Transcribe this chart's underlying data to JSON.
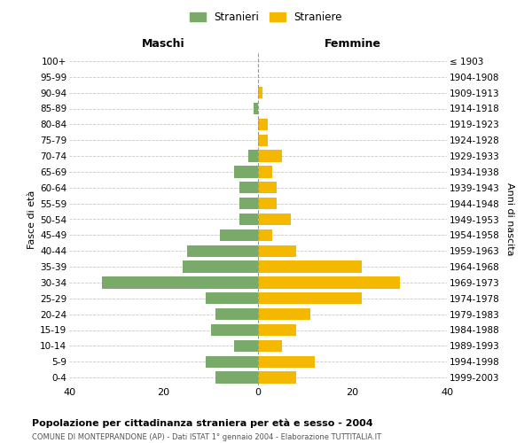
{
  "age_groups": [
    "100+",
    "95-99",
    "90-94",
    "85-89",
    "80-84",
    "75-79",
    "70-74",
    "65-69",
    "60-64",
    "55-59",
    "50-54",
    "45-49",
    "40-44",
    "35-39",
    "30-34",
    "25-29",
    "20-24",
    "15-19",
    "10-14",
    "5-9",
    "0-4"
  ],
  "birth_years": [
    "≤ 1903",
    "1904-1908",
    "1909-1913",
    "1914-1918",
    "1919-1923",
    "1924-1928",
    "1929-1933",
    "1934-1938",
    "1939-1943",
    "1944-1948",
    "1949-1953",
    "1954-1958",
    "1959-1963",
    "1964-1968",
    "1969-1973",
    "1974-1978",
    "1979-1983",
    "1984-1988",
    "1989-1993",
    "1994-1998",
    "1999-2003"
  ],
  "maschi": [
    0,
    0,
    0,
    1,
    0,
    0,
    2,
    5,
    4,
    4,
    4,
    8,
    15,
    16,
    33,
    11,
    9,
    10,
    5,
    11,
    9
  ],
  "femmine": [
    0,
    0,
    1,
    0,
    2,
    2,
    5,
    3,
    4,
    4,
    7,
    3,
    8,
    22,
    30,
    22,
    11,
    8,
    5,
    12,
    8
  ],
  "maschi_color": "#7aaa6a",
  "femmine_color": "#f5b800",
  "background_color": "#ffffff",
  "grid_color": "#c8c8c8",
  "title": "Popolazione per cittadinanza straniera per età e sesso - 2004",
  "subtitle": "COMUNE DI MONTEPRANDONE (AP) - Dati ISTAT 1° gennaio 2004 - Elaborazione TUTTITALIA.IT",
  "xlabel_left": "Maschi",
  "xlabel_right": "Femmine",
  "ylabel_left": "Fasce di età",
  "ylabel_right": "Anni di nascita",
  "legend_maschi": "Stranieri",
  "legend_femmine": "Straniere",
  "xlim": 40,
  "bar_height": 0.75
}
